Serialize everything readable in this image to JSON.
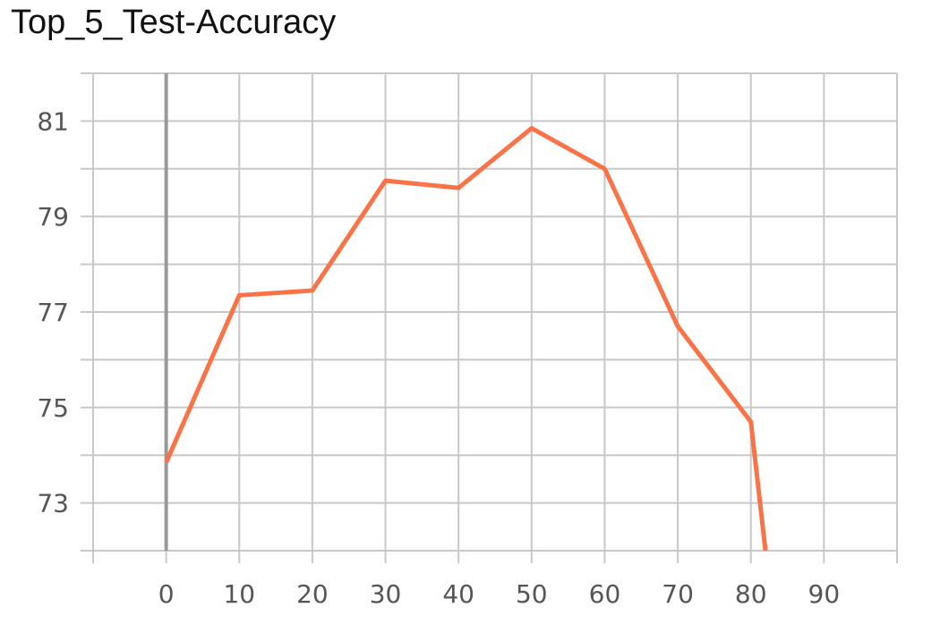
{
  "chart_data": {
    "type": "line",
    "title": "Top_5_Test-Accuracy",
    "xlabel": "",
    "ylabel": "",
    "xlim": [
      -10,
      100
    ],
    "ylim": [
      72,
      82
    ],
    "xticks": [
      0,
      10,
      20,
      30,
      40,
      50,
      60,
      70,
      80,
      90
    ],
    "yticks": [
      73,
      75,
      77,
      79,
      81
    ],
    "grid": true,
    "line_color": "#fa7347",
    "series": [
      {
        "x": [
          0,
          10,
          20,
          30,
          40,
          50,
          60,
          70,
          80,
          82
        ],
        "y": [
          73.85,
          77.35,
          77.45,
          79.75,
          79.6,
          80.85,
          80.0,
          76.7,
          74.7,
          72.0
        ]
      }
    ]
  }
}
